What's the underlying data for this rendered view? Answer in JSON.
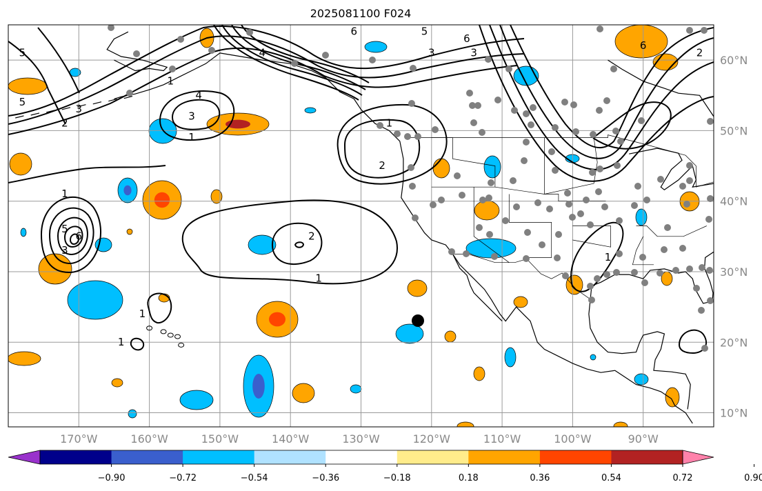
{
  "title": "2025081100 F024",
  "map": {
    "lon_range": [
      -180,
      -80
    ],
    "lat_range": [
      8,
      65
    ],
    "lon_ticks": [
      {
        "value": -170,
        "label": "170°W"
      },
      {
        "value": -160,
        "label": "160°W"
      },
      {
        "value": -150,
        "label": "150°W"
      },
      {
        "value": -140,
        "label": "140°W"
      },
      {
        "value": -130,
        "label": "130°W"
      },
      {
        "value": -120,
        "label": "120°W"
      },
      {
        "value": -110,
        "label": "110°W"
      },
      {
        "value": -100,
        "label": "100°W"
      },
      {
        "value": -90,
        "label": "90°W"
      }
    ],
    "lat_ticks": [
      {
        "value": 60,
        "label": "60°N"
      },
      {
        "value": 50,
        "label": "50°N"
      },
      {
        "value": 40,
        "label": "40°N"
      },
      {
        "value": 30,
        "label": "30°N"
      },
      {
        "value": 20,
        "label": "20°N"
      },
      {
        "value": 10,
        "label": "10°N"
      }
    ],
    "grid": true,
    "colors": {
      "grid": "#999999",
      "coast": "#000000",
      "contour": "#000000",
      "station": "#808080",
      "marker": "#000000"
    }
  },
  "colorbar": {
    "bins": [
      {
        "color": "#9932cc"
      },
      {
        "color": "#00008b"
      },
      {
        "color": "#3a5fcd"
      },
      {
        "color": "#00bfff"
      },
      {
        "color": "#b0e2ff"
      },
      {
        "color": "#ffffff"
      },
      {
        "color": "#ffec8b"
      },
      {
        "color": "#ffa500"
      },
      {
        "color": "#ff4500"
      },
      {
        "color": "#b22222"
      },
      {
        "color": "#ff82ab"
      }
    ],
    "tick_labels": [
      "−0.90",
      "−0.72",
      "−0.54",
      "−0.36",
      "−0.18",
      "0.18",
      "0.36",
      "0.54",
      "0.72",
      "0.90"
    ]
  },
  "contour_labels": [
    {
      "text": "5",
      "lon": -178,
      "lat": 61
    },
    {
      "text": "5",
      "lon": -178,
      "lat": 54
    },
    {
      "text": "2",
      "lon": -172,
      "lat": 51
    },
    {
      "text": "3",
      "lon": -170,
      "lat": 53
    },
    {
      "text": "1",
      "lon": -157,
      "lat": 57
    },
    {
      "text": "4",
      "lon": -153,
      "lat": 55
    },
    {
      "text": "3",
      "lon": -154,
      "lat": 52
    },
    {
      "text": "1",
      "lon": -154,
      "lat": 49
    },
    {
      "text": "4",
      "lon": -144,
      "lat": 61
    },
    {
      "text": "5",
      "lon": -121,
      "lat": 64
    },
    {
      "text": "3",
      "lon": -120,
      "lat": 61
    },
    {
      "text": "6",
      "lon": -131,
      "lat": 64
    },
    {
      "text": "1",
      "lon": -126,
      "lat": 51
    },
    {
      "text": "2",
      "lon": -127,
      "lat": 45
    },
    {
      "text": "3",
      "lon": -114,
      "lat": 61
    },
    {
      "text": "6",
      "lon": -115,
      "lat": 63
    },
    {
      "text": "6",
      "lon": -90,
      "lat": 62
    },
    {
      "text": "2",
      "lon": -82,
      "lat": 61
    },
    {
      "text": "1",
      "lon": -172,
      "lat": 41
    },
    {
      "text": "5",
      "lon": -172,
      "lat": 36
    },
    {
      "text": "6",
      "lon": -170,
      "lat": 35
    },
    {
      "text": "3",
      "lon": -172,
      "lat": 33
    },
    {
      "text": "2",
      "lon": -137,
      "lat": 35
    },
    {
      "text": "1",
      "lon": -136,
      "lat": 29
    },
    {
      "text": "1",
      "lon": -161,
      "lat": 24
    },
    {
      "text": "1",
      "lon": -164,
      "lat": 20
    },
    {
      "text": "1",
      "lon": -95,
      "lat": 32
    }
  ]
}
